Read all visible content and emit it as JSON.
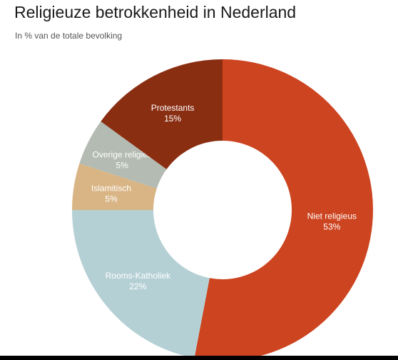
{
  "header": {
    "title": "Religieuze betrokkenheid in Nederland",
    "subtitle": "In % van de totale bevolking"
  },
  "chart_data": {
    "type": "pie",
    "donut": true,
    "start_angle_deg": 0,
    "direction": "clockwise",
    "title": "Religieuze betrokkenheid in Nederland",
    "subtitle": "In % van de totale bevolking",
    "legend": "none",
    "slices": [
      {
        "label": "Niet religieus",
        "value": 53,
        "value_label": "53%",
        "color": "#cd4420",
        "label_color": "#ffffff"
      },
      {
        "label": "Rooms-Katholiek",
        "value": 22,
        "value_label": "22%",
        "color": "#b5d0d5",
        "label_color": "#ffffff"
      },
      {
        "label": "Islamitisch",
        "value": 5,
        "value_label": "5%",
        "color": "#d9b585",
        "label_color": "#ffffff"
      },
      {
        "label": "Overige religies",
        "value": 5,
        "value_label": "5%",
        "color": "#b4bbb2",
        "label_color": "#ffffff"
      },
      {
        "label": "Protestants",
        "value": 15,
        "value_label": "15%",
        "color": "#8a2e12",
        "label_color": "#ffffff"
      }
    ]
  }
}
